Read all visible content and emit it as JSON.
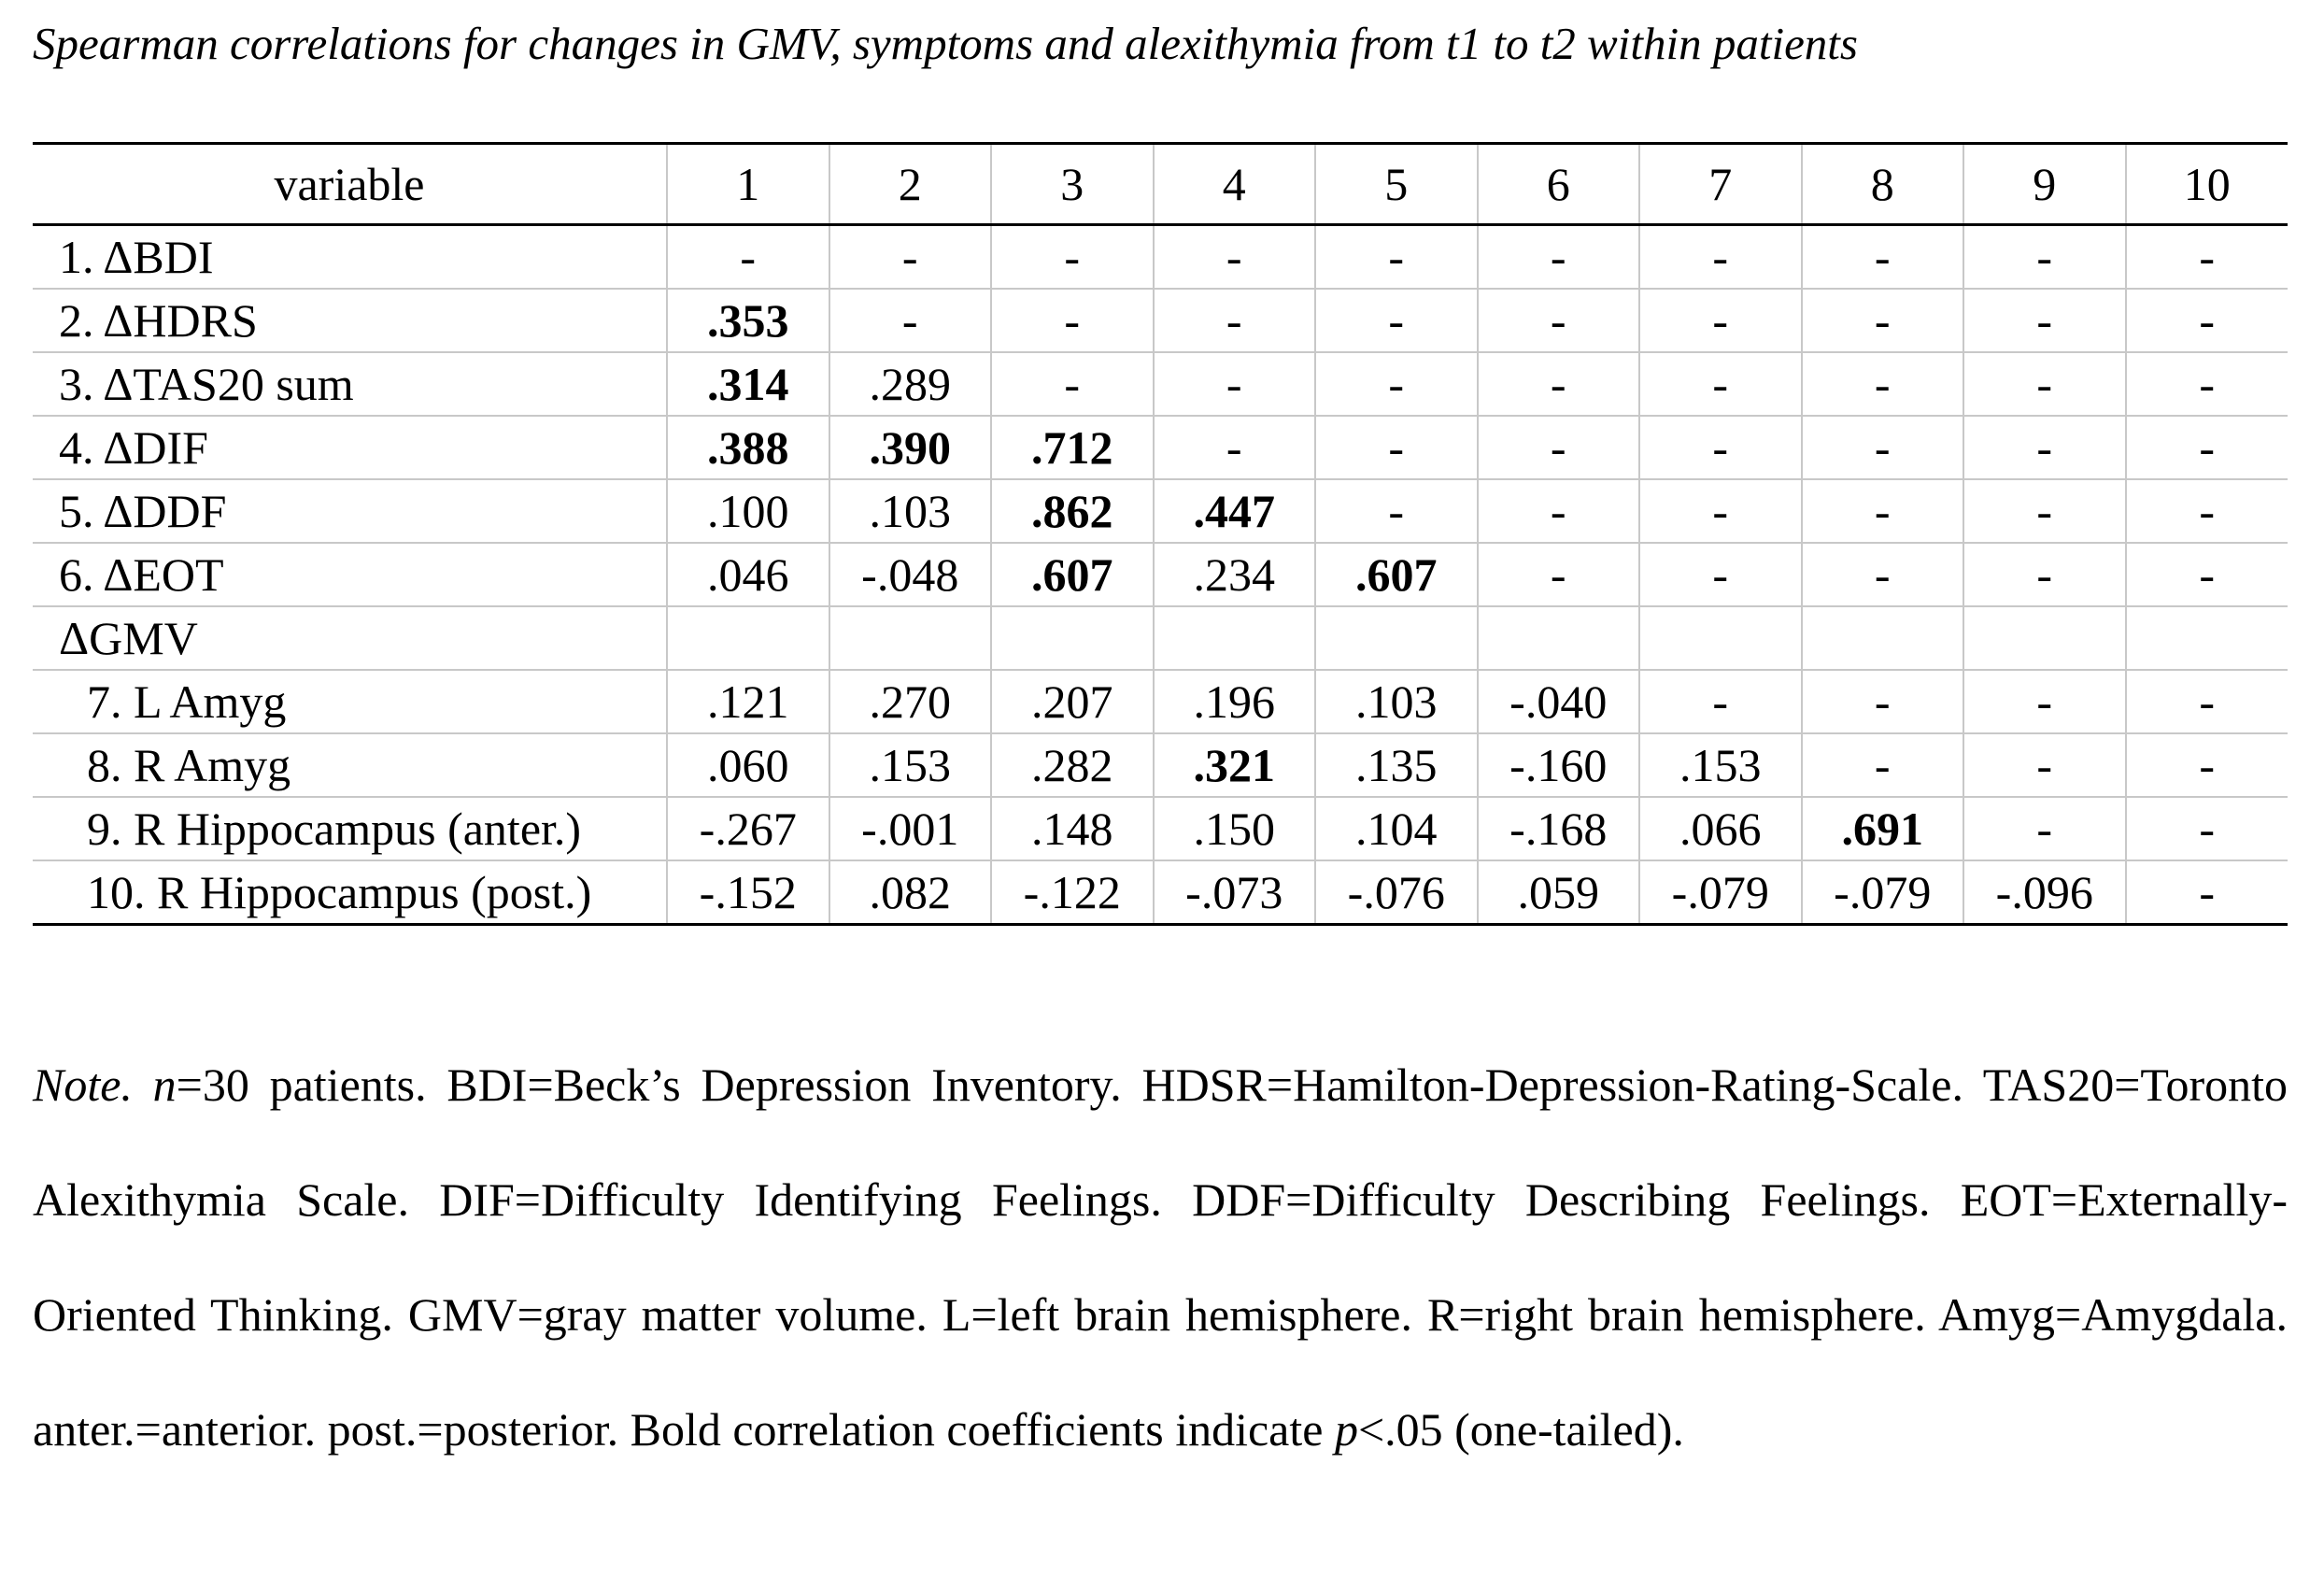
{
  "title": "Spearman correlations for changes in GMV, symptoms and alexithymia from t1 to t2 within patients",
  "table": {
    "header": [
      "variable",
      "1",
      "2",
      "3",
      "4",
      "5",
      "6",
      "7",
      "8",
      "9",
      "10"
    ],
    "rows": [
      {
        "label": "1. ΔBDI",
        "cells": [
          "-",
          "-",
          "-",
          "-",
          "-",
          "-",
          "-",
          "-",
          "-",
          "-"
        ],
        "bold": []
      },
      {
        "label": "2. ΔHDRS",
        "cells": [
          ".353",
          "-",
          "-",
          "-",
          "-",
          "-",
          "-",
          "-",
          "-",
          "-"
        ],
        "bold": [
          0
        ]
      },
      {
        "label": "3. ΔTAS20 sum",
        "cells": [
          ".314",
          ".289",
          "-",
          "-",
          "-",
          "-",
          "-",
          "-",
          "-",
          "-"
        ],
        "bold": [
          0
        ]
      },
      {
        "label": "4. ΔDIF",
        "cells": [
          ".388",
          ".390",
          ".712",
          "-",
          "-",
          "-",
          "-",
          "-",
          "-",
          "-"
        ],
        "bold": [
          0,
          1,
          2
        ]
      },
      {
        "label": "5. ΔDDF",
        "cells": [
          ".100",
          ".103",
          ".862",
          ".447",
          "-",
          "-",
          "-",
          "-",
          "-",
          "-"
        ],
        "bold": [
          2,
          3
        ]
      },
      {
        "label": "6. ΔEOT",
        "cells": [
          ".046",
          "-.048",
          ".607",
          ".234",
          ".607",
          "-",
          "-",
          "-",
          "-",
          "-"
        ],
        "bold": [
          2,
          4
        ]
      },
      {
        "label": "ΔGMV",
        "cells": [],
        "bold": []
      },
      {
        "label": "7. L Amyg",
        "indent": true,
        "cells": [
          ".121",
          ".270",
          ".207",
          ".196",
          ".103",
          "-.040",
          "-",
          "-",
          "-",
          "-"
        ],
        "bold": []
      },
      {
        "label": "8. R Amyg",
        "indent": true,
        "cells": [
          ".060",
          ".153",
          ".282",
          ".321",
          ".135",
          "-.160",
          ".153",
          "-",
          "-",
          "-"
        ],
        "bold": [
          3
        ]
      },
      {
        "label": "9. R Hippocampus (anter.)",
        "indent": true,
        "cells": [
          "-.267",
          "-.001",
          ".148",
          ".150",
          ".104",
          "-.168",
          ".066",
          ".691",
          "-",
          "-"
        ],
        "bold": [
          7
        ]
      },
      {
        "label": "10. R Hippocampus (post.)",
        "indent": true,
        "cells": [
          "-.152",
          ".082",
          "-.122",
          "-.073",
          "-.076",
          ".059",
          "-.079",
          "-.079",
          "-.096",
          "-"
        ],
        "bold": []
      }
    ]
  },
  "note": [
    "Note.",
    "n",
    "=30 patients. BDI=Beck’s Depression Inventory. HDSR=Hamilton-Depression-Rating-Scale. TAS20=Toronto Alexithymia Scale. DIF=Difficulty Identifying Feelings. DDF=Difficulty Describing Feelings. EOT=Externally-Oriented Thinking. GMV=gray matter volume. L=left brain hemisphere. R=right brain hemisphere. Amyg=Amygdala. anter.=anterior. post.=posterior. Bold correlation coefficients indicate",
    "p",
    "<.05 (one-tailed)."
  ]
}
